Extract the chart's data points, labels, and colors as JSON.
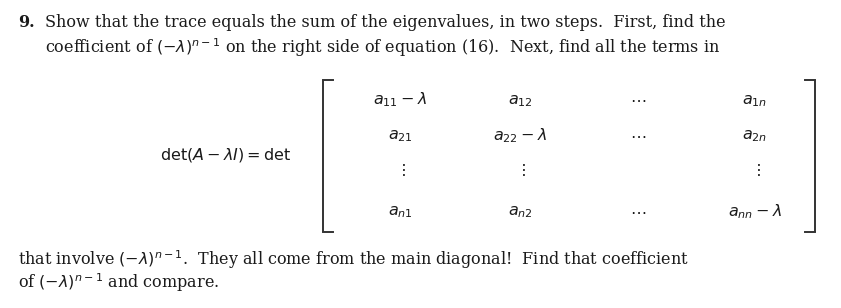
{
  "figsize": [
    8.41,
    3.08
  ],
  "dpi": 100,
  "bg_color": "#ffffff",
  "text_color": "#1a1a1a",
  "number_text": "9.",
  "line1_plain": "Show that the trace equals the sum of the eigenvalues, in two steps.  First, find the",
  "line2": "coefficient of $(-\\lambda)^{n-1}$ on the right side of equation (16).  Next, find all the terms in",
  "lhs_eq": "$\\det(A - \\lambda I) = \\det$",
  "row1": [
    "$a_{11} - \\lambda$",
    "$a_{12}$",
    "$\\cdots$",
    "$a_{1n}$"
  ],
  "row2": [
    "$a_{21}$",
    "$a_{22} - \\lambda$",
    "$\\cdots$",
    "$a_{2n}$"
  ],
  "row3": [
    "$\\vdots$",
    "$\\vdots$",
    "",
    "$\\vdots$"
  ],
  "row4": [
    "$a_{n1}$",
    "$a_{n2}$",
    "$\\cdots$",
    "$a_{nn} - \\lambda$"
  ],
  "bottom_line1": "that involve $(-\\lambda)^{n-1}$.  They all come from the main diagonal!  Find that coefficient",
  "bottom_line2": "of $(-\\lambda)^{n-1}$ and compare.",
  "fs": 11.5,
  "fs_math": 11.5
}
